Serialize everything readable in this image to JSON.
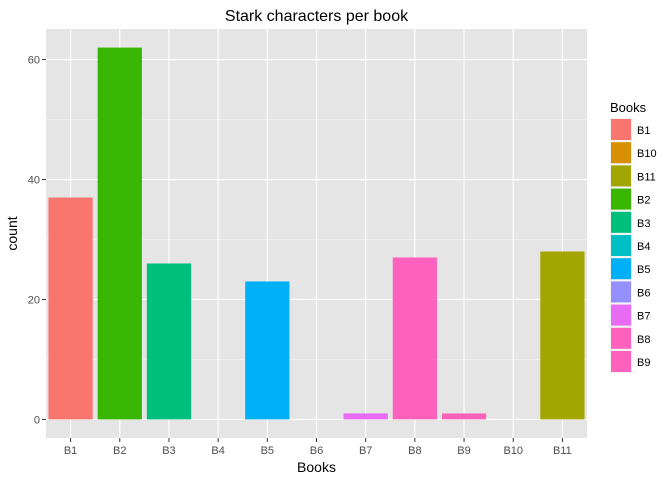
{
  "chart_data": {
    "type": "bar",
    "title": "Stark characters per book",
    "xlabel": "Books",
    "ylabel": "count",
    "categories": [
      "B1",
      "B2",
      "B3",
      "B4",
      "B5",
      "B6",
      "B7",
      "B8",
      "B9",
      "B10",
      "B11"
    ],
    "values": [
      37,
      62,
      26,
      0,
      23,
      0,
      1,
      27,
      1,
      0,
      28
    ],
    "ylim": [
      -3.1,
      65.1
    ],
    "yticks": [
      0,
      20,
      40,
      60
    ],
    "grid": true,
    "legend": {
      "title": "Books",
      "placement": "right",
      "entries": [
        "B1",
        "B10",
        "B11",
        "B2",
        "B3",
        "B4",
        "B5",
        "B6",
        "B7",
        "B8",
        "B9"
      ]
    },
    "colors": {
      "B1": "#F8766D",
      "B10": "#D89000",
      "B11": "#A3A500",
      "B2": "#39B600",
      "B3": "#00BF7D",
      "B4": "#00BFC4",
      "B5": "#00B0F6",
      "B6": "#9590FF",
      "B7": "#E76BF3",
      "B8": "#FF62BC",
      "B9": "#FF62BC"
    },
    "panel_background": "#E5E5E5",
    "gridline_color": "#FFFFFF"
  }
}
